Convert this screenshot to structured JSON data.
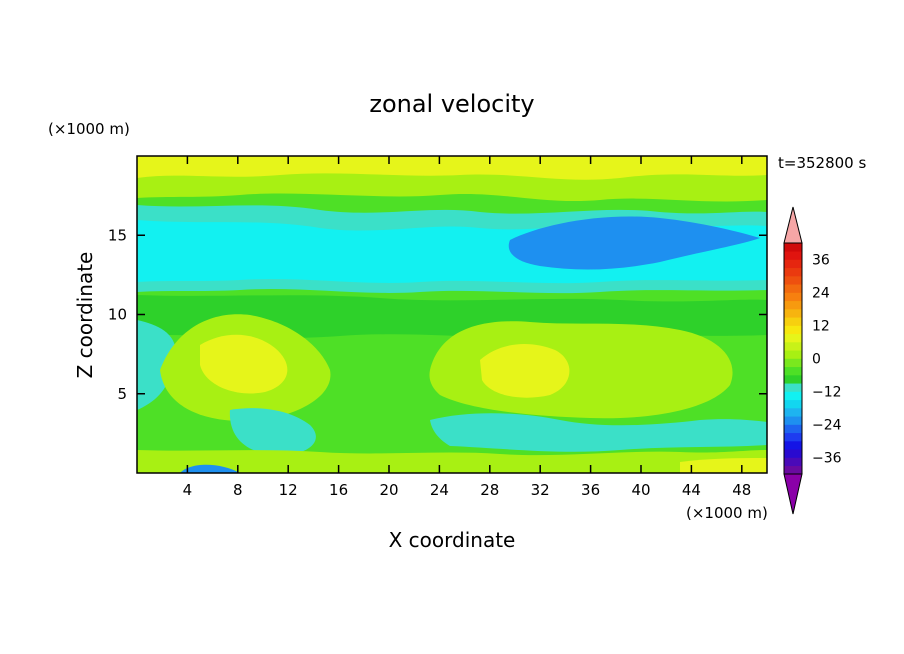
{
  "chart_data": {
    "type": "heatmap",
    "title": "zonal velocity",
    "xlabel": "X coordinate",
    "ylabel": "Z coordinate",
    "x_unit": "(×1000 m)",
    "y_unit": "(×1000 m)",
    "time_label": "t=352800 s",
    "xlim": [
      0,
      50
    ],
    "ylim": [
      0,
      20
    ],
    "x_ticks": [
      4,
      8,
      12,
      16,
      20,
      24,
      28,
      32,
      36,
      40,
      44,
      48
    ],
    "y_ticks": [
      5,
      10,
      15
    ],
    "colorbar": {
      "levels": [
        -42,
        -39,
        -36,
        -33,
        -30,
        -27,
        -24,
        -21,
        -18,
        -15,
        -12,
        -9,
        -6,
        -3,
        0,
        3,
        6,
        9,
        12,
        15,
        18,
        21,
        24,
        27,
        30,
        33,
        36,
        39,
        42
      ],
      "tick_labels": [
        "36",
        "24",
        "12",
        "0",
        "−12",
        "−24",
        "−36"
      ],
      "tick_values": [
        36,
        24,
        12,
        0,
        -12,
        -24,
        -36
      ],
      "extend": "both",
      "colors": {
        "below_min": "#8a00a8",
        "above_max": "#f6a6a6"
      }
    },
    "field_description": "Contoured zonal velocity field: positive (yellow/green) near top and bottom boundaries and mid-level bands, negative (cyan/blue) band around Z 12-16 with minimum near X 28-38."
  },
  "colors": {
    "plot_border": "#000000",
    "background": "#ffffff"
  }
}
